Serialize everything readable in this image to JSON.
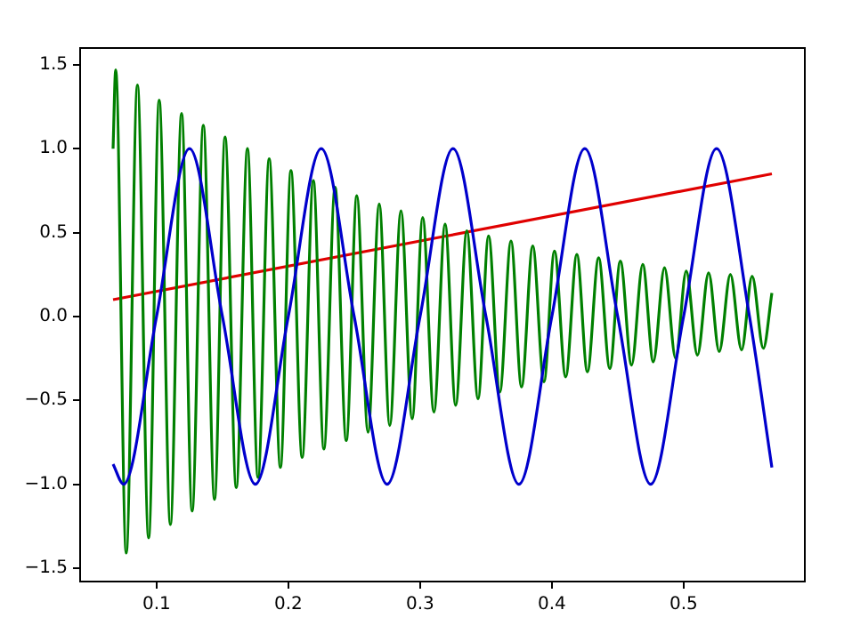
{
  "chart_data": {
    "type": "line",
    "xlim": [
      0.042,
      0.592
    ],
    "ylim": [
      -1.58,
      1.6
    ],
    "xticks": [
      0.1,
      0.2,
      0.3,
      0.4,
      0.5
    ],
    "yticks": [
      {
        "value": -1.5,
        "label": "−1.5"
      },
      {
        "value": -1.0,
        "label": "−1.0"
      },
      {
        "value": -0.5,
        "label": "−0.5"
      },
      {
        "value": 0,
        "label": "0.0"
      },
      {
        "value": 0.5,
        "label": "0.5"
      },
      {
        "value": 1.0,
        "label": "1.0"
      },
      {
        "value": 1.5,
        "label": "1.5"
      }
    ],
    "legend": false,
    "series": [
      {
        "color": "#0000cc",
        "x": [
          0.067,
          0.075,
          0.1,
          0.125,
          0.15,
          0.175,
          0.2,
          0.225,
          0.25,
          0.275,
          0.3,
          0.325,
          0.35,
          0.375,
          0.4,
          0.425,
          0.45,
          0.475,
          0.5,
          0.525,
          0.55,
          0.567
        ],
        "values": [
          -0.88,
          -1.0,
          0,
          1.0,
          0,
          -1.0,
          0,
          1.0,
          0,
          -1.0,
          0,
          1.0,
          0,
          -1.0,
          0,
          1.0,
          0,
          -1.0,
          0,
          1.0,
          0,
          -0.9
        ]
      },
      {
        "color": "#008000",
        "x": [
          0.067,
          0.069,
          0.077,
          0.0855,
          0.094,
          0.102,
          0.1105,
          0.119,
          0.127,
          0.1355,
          0.144,
          0.152,
          0.1605,
          0.169,
          0.177,
          0.1855,
          0.194,
          0.202,
          0.2105,
          0.219,
          0.227,
          0.2355,
          0.244,
          0.252,
          0.2605,
          0.269,
          0.277,
          0.2855,
          0.294,
          0.302,
          0.3105,
          0.319,
          0.327,
          0.3355,
          0.344,
          0.352,
          0.3605,
          0.369,
          0.377,
          0.3855,
          0.394,
          0.402,
          0.4105,
          0.419,
          0.427,
          0.4355,
          0.444,
          0.452,
          0.4605,
          0.469,
          0.477,
          0.4855,
          0.494,
          0.502,
          0.5105,
          0.519,
          0.527,
          0.5355,
          0.544,
          0.552,
          0.5605,
          0.567
        ],
        "values": [
          1.0,
          1.47,
          -1.41,
          1.38,
          -1.32,
          1.29,
          -1.24,
          1.21,
          -1.16,
          1.14,
          -1.09,
          1.07,
          -1.02,
          1.0,
          -0.96,
          0.94,
          -0.9,
          0.87,
          -0.84,
          0.81,
          -0.79,
          0.77,
          -0.74,
          0.72,
          -0.69,
          0.67,
          -0.65,
          0.63,
          -0.61,
          0.59,
          -0.57,
          0.55,
          -0.53,
          0.51,
          -0.49,
          0.48,
          -0.45,
          0.45,
          -0.42,
          0.42,
          -0.39,
          0.39,
          -0.36,
          0.37,
          -0.33,
          0.35,
          -0.31,
          0.33,
          -0.29,
          0.31,
          -0.27,
          0.29,
          -0.25,
          0.27,
          -0.23,
          0.26,
          -0.21,
          0.25,
          -0.2,
          0.24,
          -0.19,
          0.14
        ]
      },
      {
        "color": "#e00000",
        "x": [
          0.067,
          0.567
        ],
        "values": [
          0.1,
          0.85
        ]
      }
    ]
  }
}
